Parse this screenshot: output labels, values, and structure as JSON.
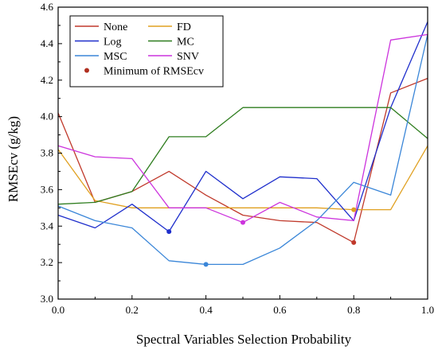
{
  "chart_data": {
    "type": "line",
    "title": "",
    "xlabel": "Spectral Variables Selection Probability",
    "ylabel": "RMSEcv (g/kg)",
    "xlim": [
      0.0,
      1.0
    ],
    "ylim": [
      3.0,
      4.6
    ],
    "x_ticks": [
      "0.0",
      "0.2",
      "0.4",
      "0.6",
      "0.8",
      "1.0"
    ],
    "y_ticks": [
      "3.0",
      "3.2",
      "3.4",
      "3.6",
      "3.8",
      "4.0",
      "4.2",
      "4.4",
      "4.6"
    ],
    "x": [
      0.0,
      0.1,
      0.2,
      0.3,
      0.4,
      0.5,
      0.6,
      0.7,
      0.8,
      0.9,
      1.0
    ],
    "series": [
      {
        "name": "None",
        "color": "#c0392b",
        "values": [
          4.02,
          3.53,
          3.59,
          3.7,
          3.57,
          3.46,
          3.43,
          3.42,
          3.31,
          4.13,
          4.21
        ],
        "min_index": 8
      },
      {
        "name": "FD",
        "color": "#e0a020",
        "values": [
          3.82,
          3.54,
          3.5,
          3.5,
          3.5,
          3.5,
          3.5,
          3.5,
          3.49,
          3.49,
          3.84
        ],
        "min_index": 8
      },
      {
        "name": "Log",
        "color": "#1f2fcc",
        "values": [
          3.46,
          3.39,
          3.52,
          3.37,
          3.7,
          3.55,
          3.67,
          3.66,
          3.43,
          4.05,
          4.52
        ],
        "min_index": 3
      },
      {
        "name": "MC",
        "color": "#2e7d1e",
        "values": [
          3.52,
          3.53,
          3.59,
          3.89,
          3.89,
          4.05,
          4.05,
          4.05,
          4.05,
          4.05,
          3.88
        ],
        "min_index": null
      },
      {
        "name": "MSC",
        "color": "#3a86d8",
        "values": [
          3.51,
          3.43,
          3.39,
          3.21,
          3.19,
          3.19,
          3.28,
          3.43,
          3.64,
          3.57,
          4.45
        ],
        "min_index": 4
      },
      {
        "name": "SNV",
        "color": "#cc33dd",
        "values": [
          3.84,
          3.78,
          3.77,
          3.5,
          3.5,
          3.42,
          3.53,
          3.45,
          3.43,
          4.42,
          4.45
        ],
        "min_index": 5
      }
    ],
    "marker_legend": "Minimum of RMSEcv",
    "marker_color": "#b03020",
    "legend_position": "top-left",
    "grid": false
  }
}
